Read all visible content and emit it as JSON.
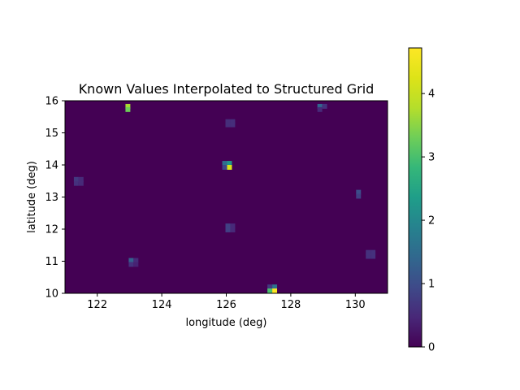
{
  "chart_data": {
    "type": "heatmap",
    "title": "Known Values Interpolated to Structured Grid",
    "xlabel": "longitude (deg)",
    "ylabel": "latitude (deg)",
    "xlim": [
      121,
      131
    ],
    "ylim": [
      10,
      16
    ],
    "xticks": [
      122,
      124,
      126,
      128,
      130
    ],
    "yticks": [
      10,
      11,
      12,
      13,
      14,
      15,
      16
    ],
    "colorbar": {
      "min": 0,
      "max": 4.72,
      "ticks": [
        0,
        1,
        2,
        3,
        4
      ],
      "colormap": "viridis"
    },
    "cell_size_deg": [
      0.15,
      0.15
    ],
    "background_value": 0,
    "cells": [
      {
        "lon": 122.95,
        "lat": 15.825,
        "value": 3.7
      },
      {
        "lon": 122.95,
        "lat": 15.725,
        "value": 3.3
      },
      {
        "lon": 128.9,
        "lat": 15.825,
        "value": 1.4
      },
      {
        "lon": 129.05,
        "lat": 15.825,
        "value": 0.6
      },
      {
        "lon": 128.9,
        "lat": 15.725,
        "value": 0.5
      },
      {
        "lon": 126.05,
        "lat": 15.35,
        "value": 0.55
      },
      {
        "lon": 126.2,
        "lat": 15.35,
        "value": 0.55
      },
      {
        "lon": 126.05,
        "lat": 15.25,
        "value": 0.55
      },
      {
        "lon": 126.2,
        "lat": 15.25,
        "value": 0.55
      },
      {
        "lon": 125.95,
        "lat": 14.05,
        "value": 1.5
      },
      {
        "lon": 126.1,
        "lat": 14.05,
        "value": 2.2
      },
      {
        "lon": 125.95,
        "lat": 13.925,
        "value": 0.9
      },
      {
        "lon": 126.1,
        "lat": 13.925,
        "value": 4.2
      },
      {
        "lon": 121.35,
        "lat": 13.55,
        "value": 0.7
      },
      {
        "lon": 121.5,
        "lat": 13.55,
        "value": 0.5
      },
      {
        "lon": 121.35,
        "lat": 13.425,
        "value": 0.6
      },
      {
        "lon": 121.5,
        "lat": 13.425,
        "value": 0.5
      },
      {
        "lon": 130.1,
        "lat": 13.15,
        "value": 1.0
      },
      {
        "lon": 130.1,
        "lat": 13.025,
        "value": 0.8
      },
      {
        "lon": 126.05,
        "lat": 12.1,
        "value": 0.8
      },
      {
        "lon": 126.2,
        "lat": 12.1,
        "value": 0.5
      },
      {
        "lon": 126.05,
        "lat": 11.975,
        "value": 0.8
      },
      {
        "lon": 126.2,
        "lat": 11.975,
        "value": 0.5
      },
      {
        "lon": 130.4,
        "lat": 11.275,
        "value": 0.6
      },
      {
        "lon": 130.55,
        "lat": 11.275,
        "value": 0.6
      },
      {
        "lon": 130.4,
        "lat": 11.15,
        "value": 0.6
      },
      {
        "lon": 130.55,
        "lat": 11.15,
        "value": 0.6
      },
      {
        "lon": 123.05,
        "lat": 11.025,
        "value": 1.3
      },
      {
        "lon": 123.2,
        "lat": 11.025,
        "value": 0.5
      },
      {
        "lon": 123.05,
        "lat": 10.9,
        "value": 0.6
      },
      {
        "lon": 123.2,
        "lat": 10.9,
        "value": 0.4
      },
      {
        "lon": 127.35,
        "lat": 10.2,
        "value": 0.7
      },
      {
        "lon": 127.5,
        "lat": 10.2,
        "value": 1.6
      },
      {
        "lon": 127.35,
        "lat": 10.075,
        "value": 3.0
      },
      {
        "lon": 127.5,
        "lat": 10.075,
        "value": 4.72
      }
    ]
  }
}
